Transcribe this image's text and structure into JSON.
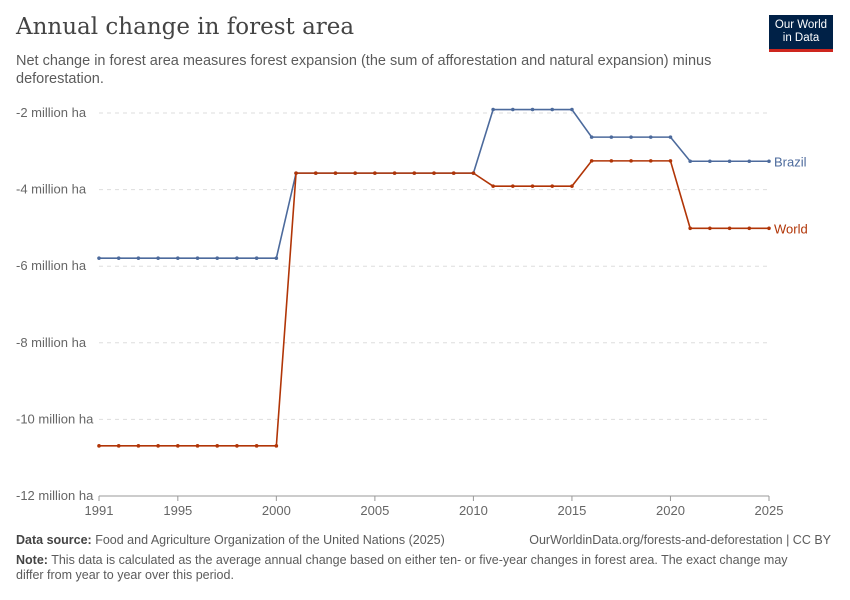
{
  "title": "Annual change in forest area",
  "subtitle": "Net change in forest area measures forest expansion (the sum of afforestation and natural expansion) minus deforestation.",
  "logo": {
    "line1": "Our World",
    "line2": "in Data"
  },
  "footer": {
    "source_label": "Data source:",
    "source": "Food and Agriculture Organization of the United Nations (2025)",
    "url": "OurWorldinData.org/forests-and-deforestation | CC BY",
    "note_label": "Note:",
    "note": "This data is calculated as the average annual change based on either ten- or five-year changes in forest area. The exact change may differ from year to year over this period."
  },
  "chart_data": {
    "type": "line",
    "title": "Annual change in forest area",
    "xlim": [
      1991,
      2025
    ],
    "ylim": [
      -12,
      -2
    ],
    "x_ticks": [
      1991,
      1995,
      2000,
      2005,
      2010,
      2015,
      2020,
      2025
    ],
    "y_ticks": [
      -2,
      -4,
      -6,
      -8,
      -10,
      -12
    ],
    "y_tick_labels": [
      "-2 million ha",
      "-4 million ha",
      "-6 million ha",
      "-8 million ha",
      "-10 million ha",
      "-12 million ha"
    ],
    "grid": "horizontal dashed",
    "legend": "line-end labels",
    "series": [
      {
        "name": "Brazil",
        "color": "#4c6a9c",
        "segments": [
          {
            "from": 1991,
            "to": 2000,
            "value": -5.79
          },
          {
            "from": 2001,
            "to": 2010,
            "value": -3.57
          },
          {
            "from": 2011,
            "to": 2015,
            "value": -1.91
          },
          {
            "from": 2016,
            "to": 2020,
            "value": -2.63
          },
          {
            "from": 2021,
            "to": 2025,
            "value": -3.26
          }
        ]
      },
      {
        "name": "World",
        "color": "#b13507",
        "segments": [
          {
            "from": 1991,
            "to": 2000,
            "value": -10.69
          },
          {
            "from": 2001,
            "to": 2010,
            "value": -3.57
          },
          {
            "from": 2011,
            "to": 2015,
            "value": -3.91
          },
          {
            "from": 2016,
            "to": 2020,
            "value": -3.25
          },
          {
            "from": 2021,
            "to": 2025,
            "value": -5.01
          }
        ]
      }
    ]
  }
}
